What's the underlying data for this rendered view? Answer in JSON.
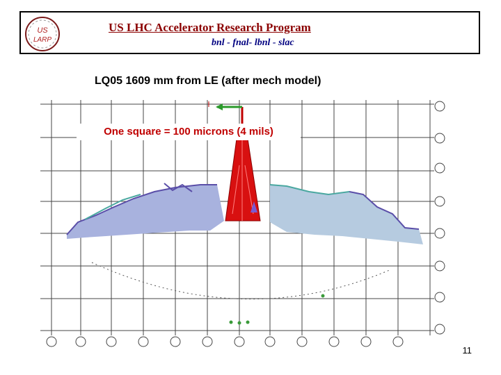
{
  "header": {
    "title": "US LHC Accelerator Research Program",
    "subtitle": "bnl - fnal- lbnl - slac",
    "logo": {
      "line1": "US",
      "line2": "LARP"
    }
  },
  "slide": {
    "title": "LQ05  1609 mm from LE (after mech model)",
    "scale_note": "One square = 100 microns (4 mils)",
    "page_number": "11"
  },
  "colors": {
    "title": "#8b0000",
    "subtitle": "#000080",
    "note": "#c00000",
    "peak": "#d81010",
    "trace_purple": "#5a4ea8",
    "trace_teal": "#4aa8a0"
  }
}
